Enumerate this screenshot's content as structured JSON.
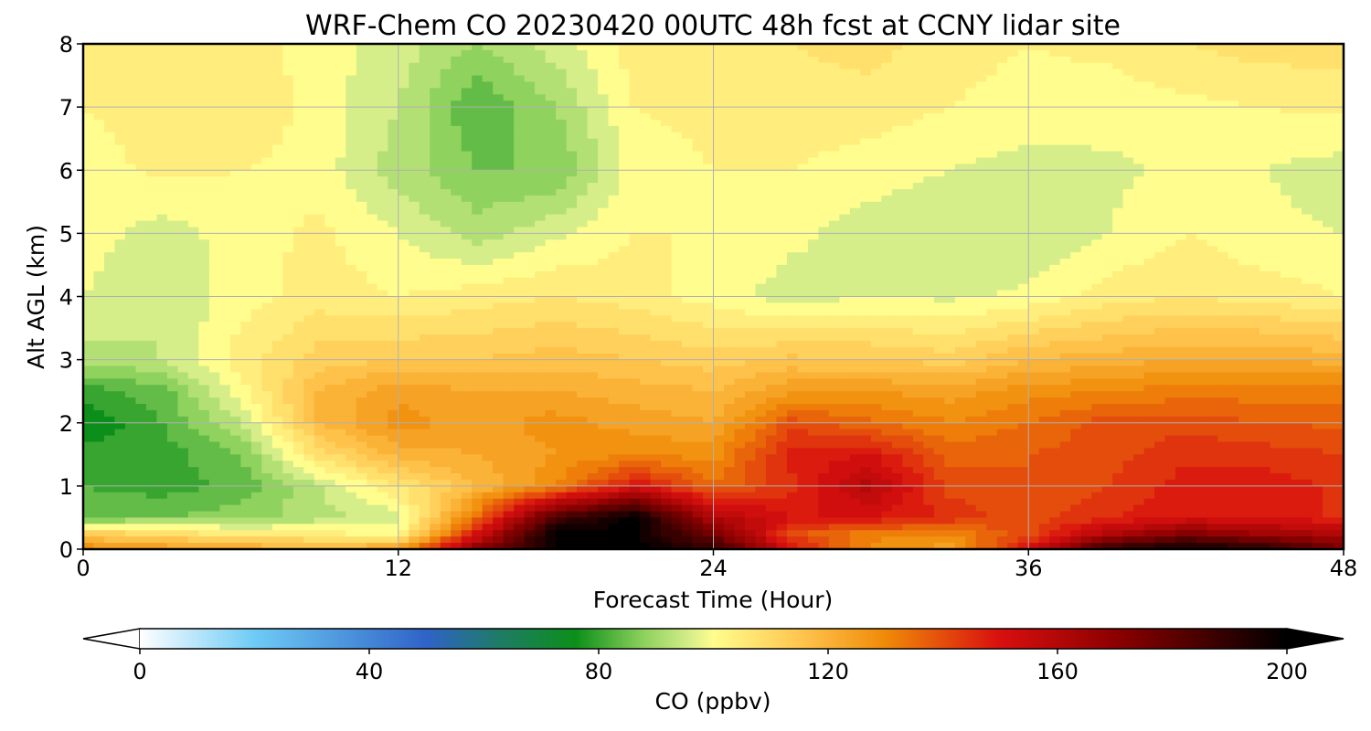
{
  "chart_data": {
    "type": "heatmap",
    "title": "WRF-Chem CO  20230420 00UTC 48h fcst at CCNY lidar site",
    "xlabel": "Forecast Time (Hour)",
    "ylabel": "Alt AGL (km)",
    "xlim": [
      0,
      48
    ],
    "ylim": [
      0,
      8
    ],
    "x_ticks": [
      "0",
      "12",
      "24",
      "36",
      "48"
    ],
    "y_ticks": [
      "0",
      "1",
      "2",
      "3",
      "4",
      "5",
      "6",
      "7",
      "8"
    ],
    "grid": true,
    "colorbar": {
      "label": "CO  (ppbv)",
      "range": [
        0,
        200
      ],
      "ticks": [
        "0",
        "40",
        "80",
        "120",
        "160",
        "200"
      ],
      "extend": "both",
      "colormap": [
        {
          "value": 0,
          "color": "#ffffff"
        },
        {
          "value": 20,
          "color": "#6ecbf5"
        },
        {
          "value": 50,
          "color": "#2f63c7"
        },
        {
          "value": 62,
          "color": "#1f7a6a"
        },
        {
          "value": 76,
          "color": "#0c8f1a"
        },
        {
          "value": 88,
          "color": "#8fd25e"
        },
        {
          "value": 96,
          "color": "#d6ee8a"
        },
        {
          "value": 100,
          "color": "#fffd8e"
        },
        {
          "value": 115,
          "color": "#ffc64f"
        },
        {
          "value": 130,
          "color": "#f08a08"
        },
        {
          "value": 150,
          "color": "#d80f0f"
        },
        {
          "value": 170,
          "color": "#8e0000"
        },
        {
          "value": 200,
          "color": "#000000"
        }
      ]
    },
    "x_hours": [
      0,
      3,
      6,
      9,
      12,
      15,
      18,
      21,
      24,
      27,
      30,
      33,
      36,
      39,
      42,
      45,
      48
    ],
    "z_km": [
      0,
      0.25,
      0.5,
      1,
      1.5,
      2,
      2.5,
      3,
      4,
      5,
      6,
      7,
      8
    ],
    "values_ppbv": [
      [
        130,
        126,
        122,
        120,
        124,
        170,
        200,
        200,
        190,
        150,
        128,
        124,
        150,
        190,
        200,
        192,
        175
      ],
      [
        112,
        108,
        104,
        103,
        100,
        150,
        200,
        200,
        175,
        140,
        132,
        130,
        140,
        160,
        172,
        165,
        160
      ],
      [
        84,
        86,
        88,
        92,
        96,
        135,
        185,
        200,
        160,
        150,
        150,
        145,
        140,
        145,
        150,
        150,
        145
      ],
      [
        82,
        80,
        83,
        94,
        106,
        118,
        130,
        150,
        135,
        145,
        160,
        140,
        138,
        142,
        148,
        148,
        145
      ],
      [
        80,
        80,
        86,
        108,
        120,
        122,
        126,
        130,
        128,
        148,
        150,
        136,
        138,
        140,
        145,
        144,
        142
      ],
      [
        74,
        82,
        94,
        118,
        128,
        124,
        128,
        124,
        122,
        140,
        135,
        130,
        134,
        140,
        140,
        138,
        137
      ],
      [
        80,
        84,
        100,
        118,
        125,
        122,
        122,
        120,
        118,
        125,
        126,
        124,
        128,
        130,
        132,
        132,
        132
      ],
      [
        92,
        94,
        104,
        112,
        114,
        114,
        116,
        114,
        112,
        115,
        114,
        112,
        118,
        120,
        122,
        122,
        120
      ],
      [
        98,
        94,
        100,
        104,
        102,
        104,
        106,
        104,
        100,
        96,
        98,
        97,
        99,
        104,
        106,
        104,
        102
      ],
      [
        100,
        96,
        100,
        103,
        98,
        92,
        97,
        102,
        102,
        99,
        96,
        94,
        94,
        98,
        102,
        99,
        98
      ],
      [
        100,
        103,
        102,
        100,
        92,
        86,
        86,
        100,
        102,
        102,
        100,
        98,
        96,
        97,
        99,
        98,
        96
      ],
      [
        102,
        104,
        106,
        100,
        94,
        82,
        90,
        102,
        103,
        104,
        104,
        102,
        101,
        100,
        101,
        102,
        103
      ],
      [
        103,
        104,
        104,
        100,
        96,
        90,
        96,
        104,
        105,
        106,
        108,
        103,
        102,
        103,
        106,
        108,
        108
      ]
    ]
  }
}
